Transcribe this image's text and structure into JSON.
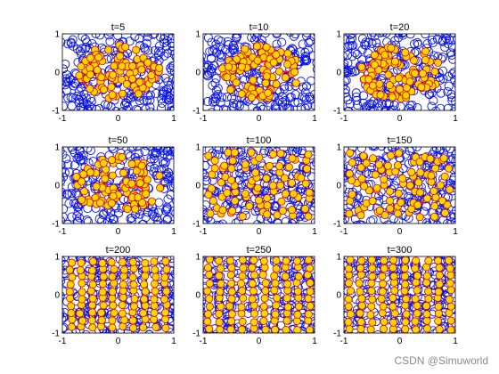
{
  "chart_data": [
    {
      "type": "scatter",
      "title": "t=5",
      "xlim": [
        -1,
        1
      ],
      "ylim": [
        -1,
        1
      ],
      "xticks": [
        "-1",
        "0",
        "1"
      ],
      "yticks": [
        "1",
        "0",
        "-1"
      ],
      "arrangement": "disordered",
      "cluster_extent": [
        0.75,
        0.72
      ],
      "red_links": "dense"
    },
    {
      "type": "scatter",
      "title": "t=10",
      "xlim": [
        -1,
        1
      ],
      "ylim": [
        -1,
        1
      ],
      "xticks": [
        "-1",
        "0",
        "1"
      ],
      "yticks": [
        "1",
        "0",
        "-1"
      ],
      "arrangement": "disordered",
      "cluster_extent": [
        0.75,
        0.72
      ],
      "red_links": "dense"
    },
    {
      "type": "scatter",
      "title": "t=20",
      "xlim": [
        -1,
        1
      ],
      "ylim": [
        -1,
        1
      ],
      "xticks": [
        "-1",
        "0",
        "1"
      ],
      "yticks": [
        "1",
        "0",
        "-1"
      ],
      "arrangement": "disordered",
      "cluster_extent": [
        0.75,
        0.72
      ],
      "red_links": "dense"
    },
    {
      "type": "scatter",
      "title": "t=50",
      "xlim": [
        -1,
        1
      ],
      "ylim": [
        -1,
        1
      ],
      "xticks": [
        "-1",
        "0",
        "1"
      ],
      "yticks": [
        "1",
        "0",
        "-1"
      ],
      "arrangement": "disordered",
      "cluster_extent": [
        0.8,
        0.75
      ],
      "red_links": "medium"
    },
    {
      "type": "scatter",
      "title": "t=100",
      "xlim": [
        -1,
        1
      ],
      "ylim": [
        -1,
        1
      ],
      "xticks": [
        "-1",
        "0",
        "1"
      ],
      "yticks": [
        "1",
        "0",
        "-1"
      ],
      "arrangement": "partially ordered",
      "cluster_extent": [
        0.82,
        0.78
      ],
      "red_links": "sparse"
    },
    {
      "type": "scatter",
      "title": "t=150",
      "xlim": [
        -1,
        1
      ],
      "ylim": [
        -1,
        1
      ],
      "xticks": [
        "-1",
        "0",
        "1"
      ],
      "yticks": [
        "1",
        "0",
        "-1"
      ],
      "arrangement": "partially ordered",
      "cluster_extent": [
        0.82,
        0.78
      ],
      "red_links": "sparse"
    },
    {
      "type": "scatter",
      "title": "t=200",
      "xlim": [
        -1,
        1
      ],
      "ylim": [
        -1,
        1
      ],
      "xticks": [
        "-1",
        "0",
        "1"
      ],
      "yticks": [
        "1",
        "0",
        "-1"
      ],
      "arrangement": "grid",
      "cluster_extent": [
        0.85,
        0.85
      ],
      "red_links": "few"
    },
    {
      "type": "scatter",
      "title": "t=250",
      "xlim": [
        -1,
        1
      ],
      "ylim": [
        -1,
        1
      ],
      "xticks": [
        "-1",
        "0",
        "1"
      ],
      "yticks": [
        "1",
        "0",
        "-1"
      ],
      "arrangement": "grid",
      "cluster_extent": [
        0.9,
        0.9
      ],
      "red_links": "few"
    },
    {
      "type": "scatter",
      "title": "t=300",
      "xlim": [
        -1,
        1
      ],
      "ylim": [
        -1,
        1
      ],
      "xticks": [
        "-1",
        "0",
        "1"
      ],
      "yticks": [
        "1",
        "0",
        "-1"
      ],
      "arrangement": "grid",
      "cluster_extent": [
        0.9,
        0.9
      ],
      "red_links": "few"
    }
  ],
  "colors": {
    "outer_ring": "#0a14e6",
    "particle_fill": "#ffd700",
    "particle_edge": "#d40000",
    "link": "#ff1a1a"
  },
  "watermark": "CSDN @Simuworld"
}
